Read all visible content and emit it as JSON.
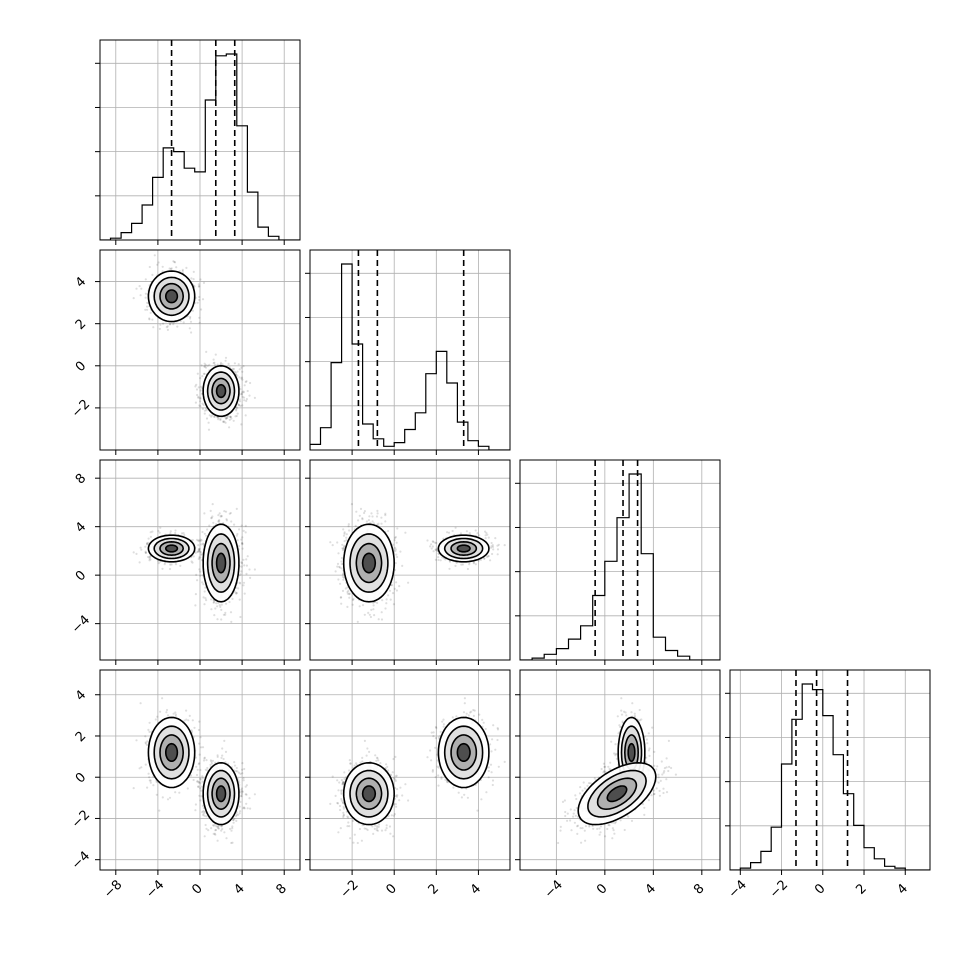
{
  "chart_data": {
    "type": "corner",
    "title": "",
    "grid": true,
    "n_params": 4,
    "param_labels": [
      "",
      "",
      "",
      ""
    ],
    "ranges": [
      [
        -9.5,
        9.5
      ],
      [
        -4.0,
        5.5
      ],
      [
        -7.0,
        9.5
      ],
      [
        -4.5,
        5.2
      ]
    ],
    "ticks": [
      [
        -8,
        -4,
        0,
        4,
        8
      ],
      [
        -2,
        0,
        2,
        4
      ],
      [
        -4,
        0,
        4,
        8
      ],
      [
        -4,
        -2,
        0,
        2,
        4
      ]
    ],
    "tick_labels": [
      [
        "−8",
        "−4",
        "0",
        "4",
        "8"
      ],
      [
        "−2",
        "0",
        "2",
        "4"
      ],
      [
        "−4",
        "0",
        "4",
        "8"
      ],
      [
        "−4",
        "−2",
        "0",
        "2",
        "4"
      ]
    ],
    "quantiles": [
      [
        -2.7,
        1.5,
        3.3
      ],
      [
        -1.7,
        -0.8,
        3.3
      ],
      [
        -0.8,
        1.5,
        2.7
      ],
      [
        -1.3,
        -0.3,
        1.2
      ]
    ],
    "histograms": [
      {
        "edges": [
          -9.5,
          -8.5,
          -7.5,
          -6.5,
          -5.5,
          -4.5,
          -3.5,
          -2.5,
          -1.5,
          -0.5,
          0.5,
          1.5,
          2.5,
          3.5,
          4.5,
          5.5,
          6.5,
          7.5,
          8.5,
          9.5
        ],
        "counts": [
          0,
          0.01,
          0.04,
          0.09,
          0.19,
          0.34,
          0.5,
          0.48,
          0.39,
          0.37,
          0.76,
          1.0,
          1.01,
          0.62,
          0.26,
          0.07,
          0.02,
          0.0,
          0.0
        ]
      },
      {
        "edges": [
          -4.0,
          -3.5,
          -3.0,
          -2.5,
          -2.0,
          -1.5,
          -1.0,
          -0.5,
          0.0,
          0.5,
          1.0,
          1.5,
          2.0,
          2.5,
          3.0,
          3.5,
          4.0,
          4.5,
          5.0,
          5.5
        ],
        "counts": [
          0.03,
          0.12,
          0.47,
          1.0,
          0.57,
          0.14,
          0.06,
          0.02,
          0.04,
          0.11,
          0.2,
          0.41,
          0.53,
          0.36,
          0.15,
          0.05,
          0.02,
          0.0,
          0.0
        ]
      },
      {
        "edges": [
          -7.0,
          -6.0,
          -5.0,
          -4.0,
          -3.0,
          -2.0,
          -1.0,
          0.0,
          1.0,
          2.0,
          3.0,
          4.0,
          5.0,
          6.0,
          7.0,
          8.0,
          9.0,
          9.5
        ],
        "counts": [
          0.0,
          0.01,
          0.03,
          0.06,
          0.11,
          0.18,
          0.34,
          0.52,
          0.75,
          0.98,
          0.56,
          0.12,
          0.05,
          0.02,
          0.0,
          0.0,
          0.0
        ]
      },
      {
        "edges": [
          -4.5,
          -4.0,
          -3.5,
          -3.0,
          -2.5,
          -2.0,
          -1.5,
          -1.0,
          -0.5,
          0.0,
          0.5,
          1.0,
          1.5,
          2.0,
          2.5,
          3.0,
          3.5,
          4.0,
          4.5,
          5.2
        ],
        "counts": [
          0.0,
          0.01,
          0.04,
          0.1,
          0.23,
          0.57,
          0.81,
          1.0,
          0.97,
          0.83,
          0.62,
          0.41,
          0.24,
          0.12,
          0.06,
          0.02,
          0.01,
          0.0,
          0.0
        ]
      }
    ],
    "joint_components": [
      {
        "w": 0.35,
        "mean": [
          -2.7,
          3.3,
          2.2,
          1.2
        ],
        "sd": [
          1.1,
          0.6,
          0.55,
          0.85
        ]
      },
      {
        "w": 0.65,
        "mean": [
          2.0,
          -1.2,
          1.0,
          -0.8
        ],
        "sd": [
          0.85,
          0.6,
          1.6,
          0.75
        ]
      }
    ],
    "joint_correlations": [
      {
        "comp": 1,
        "i": 2,
        "j": 3,
        "rho": 0.55
      }
    ]
  }
}
